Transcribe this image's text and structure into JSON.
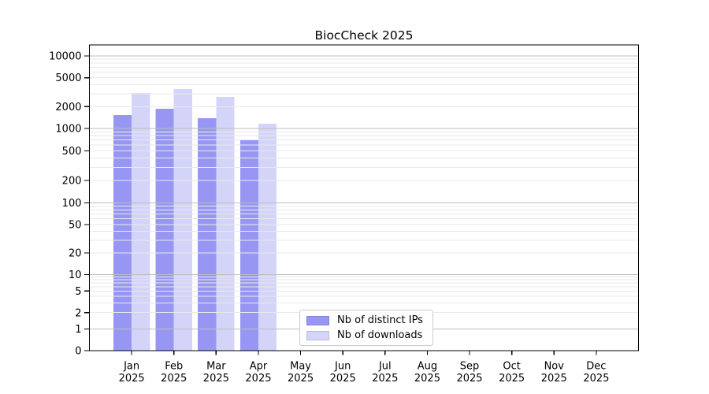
{
  "chart": {
    "title": "BiocCheck 2025"
  },
  "legend": {
    "items": [
      {
        "label": "Nb of distinct IPs",
        "swatch_color": "#9797f3"
      },
      {
        "label": "Nb of downloads",
        "swatch_color": "#d4d4f9"
      }
    ]
  },
  "colors": {
    "series_ips": "#9797f3",
    "series_downloads": "#d4d4f9",
    "major_gridline": "#bdbdbd",
    "minor_gridline": "#e9e9e9",
    "axis": "#000000",
    "background": "#ffffff"
  },
  "chart_data": {
    "type": "bar",
    "title": "BiocCheck 2025",
    "categories": [
      "Jan",
      "Feb",
      "Mar",
      "Apr",
      "May",
      "Jun",
      "Jul",
      "Aug",
      "Sep",
      "Oct",
      "Nov",
      "Dec"
    ],
    "category_year": "2025",
    "series": [
      {
        "name": "Nb of distinct IPs",
        "color": "#9797f3",
        "values": [
          1530,
          1870,
          1390,
          700,
          0,
          0,
          0,
          0,
          0,
          0,
          0,
          0
        ]
      },
      {
        "name": "Nb of downloads",
        "color": "#d4d4f9",
        "values": [
          3080,
          3500,
          2720,
          1160,
          0,
          0,
          0,
          0,
          0,
          0,
          0,
          0
        ]
      }
    ],
    "xlabel": "",
    "ylabel": "",
    "yscale": "symlog",
    "ylim": [
      0,
      14000
    ],
    "ytick_values": [
      0,
      1,
      2,
      5,
      10,
      20,
      50,
      100,
      200,
      500,
      1000,
      2000,
      5000,
      10000
    ],
    "grid": "major-and-minor, drawn over bars",
    "legend_position": "lower center"
  }
}
